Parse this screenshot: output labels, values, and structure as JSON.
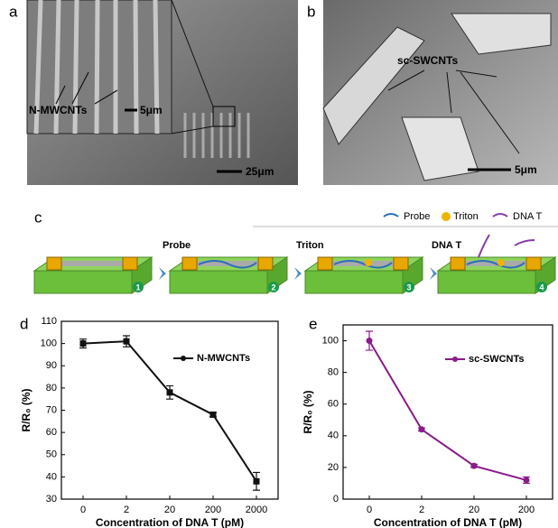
{
  "panel_labels": [
    "a",
    "b",
    "c",
    "d",
    "e"
  ],
  "sem_a": {
    "annotation": "N-MWCNTs",
    "inset_scale": "5μm",
    "scale": "25μm"
  },
  "sem_b": {
    "annotation": "sc-SWCNTs",
    "scale": "5μm"
  },
  "schematic": {
    "legend": [
      "Probe",
      "Triton",
      "DNA T"
    ],
    "steps": [
      "Probe",
      "Triton",
      "DNA T"
    ],
    "step_numbers": [
      1,
      2,
      3,
      4
    ]
  },
  "chart_data": [
    {
      "type": "line",
      "categories": [
        "0",
        "2",
        "20",
        "200",
        "2000"
      ],
      "series": [
        {
          "name": "N-MWCNTs",
          "color": "#111111",
          "values": [
            100,
            101,
            78,
            68,
            38
          ],
          "errors": [
            2,
            2.5,
            3,
            1,
            4
          ]
        }
      ],
      "ylim": [
        30,
        110
      ],
      "yticks": [
        30,
        40,
        50,
        60,
        70,
        80,
        90,
        100,
        110
      ],
      "x_label": "Concentration of DNA T (pM)",
      "y_label": "R/R₀ (%)"
    },
    {
      "type": "line",
      "categories": [
        "0",
        "2",
        "20",
        "200"
      ],
      "series": [
        {
          "name": "sc-SWCNTs",
          "color": "#8b1a8b",
          "values": [
            100,
            44,
            21,
            12
          ],
          "errors": [
            6,
            1,
            1,
            2
          ]
        }
      ],
      "ylim": [
        0,
        110
      ],
      "yticks": [
        0,
        20,
        40,
        60,
        80,
        100
      ],
      "x_label": "Concentration of DNA T (pM)",
      "y_label": "R/R₀ (%)"
    }
  ]
}
